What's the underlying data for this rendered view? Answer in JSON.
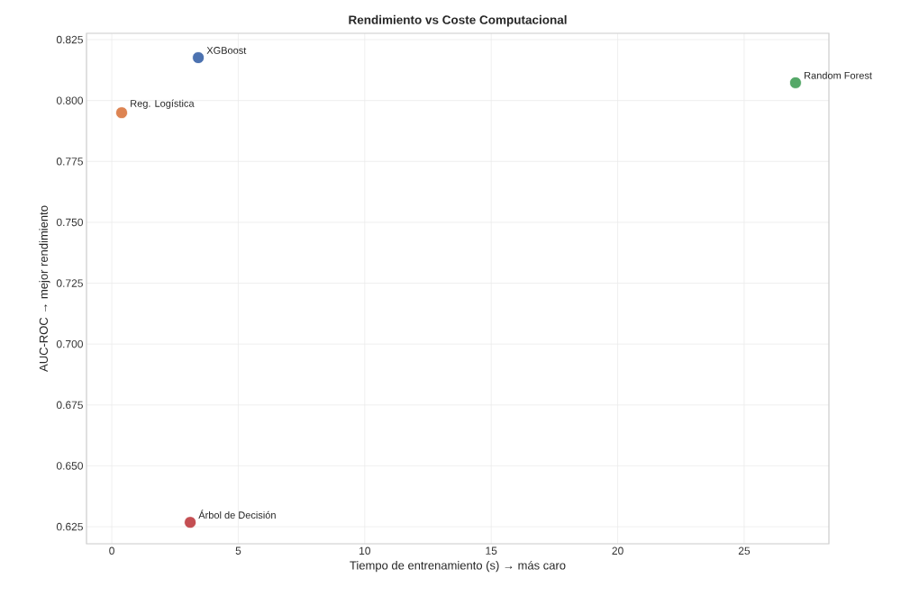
{
  "chart_data": {
    "type": "scatter",
    "title": "Rendimiento vs Coste Computacional",
    "xlabel": "Tiempo de entrenamiento (s)  →  más caro",
    "ylabel": "AUC-ROC  →  mejor rendimiento",
    "series": [
      {
        "name": "XGBoost",
        "color": "#4c72b0",
        "x": [
          3.42
        ],
        "values": [
          0.8176
        ]
      },
      {
        "name": "Reg. Logística",
        "color": "#dd8452",
        "x": [
          0.39
        ],
        "values": [
          0.795
        ]
      },
      {
        "name": "Random Forest",
        "color": "#55a868",
        "x": [
          27.03
        ],
        "values": [
          0.8073
        ]
      },
      {
        "name": "Árbol de Decisión",
        "color": "#c44e52",
        "x": [
          3.1
        ],
        "values": [
          0.6268
        ]
      }
    ],
    "xlim": [
      -1.0,
      28.35
    ],
    "ylim": [
      0.618,
      0.8276
    ],
    "xticks": [
      0,
      5,
      10,
      15,
      20,
      25
    ],
    "yticks": [
      {
        "value": 0.625,
        "label": "0.625"
      },
      {
        "value": 0.65,
        "label": "0.650"
      },
      {
        "value": 0.675,
        "label": "0.675"
      },
      {
        "value": 0.7,
        "label": "0.700"
      },
      {
        "value": 0.725,
        "label": "0.725"
      },
      {
        "value": 0.75,
        "label": "0.750"
      },
      {
        "value": 0.775,
        "label": "0.775"
      },
      {
        "value": 0.8,
        "label": "0.800"
      },
      {
        "value": 0.825,
        "label": "0.825"
      }
    ],
    "grid": true,
    "legend": false
  }
}
